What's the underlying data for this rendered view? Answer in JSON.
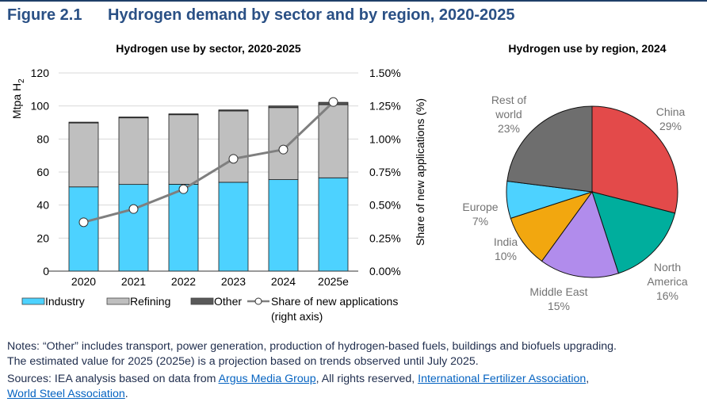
{
  "figure": {
    "number": "Figure 2.1",
    "title": "Hydrogen demand by sector and by region, 2020-2025"
  },
  "chart_data": [
    {
      "type": "bar",
      "stacked": true,
      "title": "Hydrogen use by sector, 2020-2025",
      "ylabel": "Mtpa H",
      "ylabel_sub": "2",
      "y2label": "Share of new applications (%)",
      "ylim": [
        0,
        120
      ],
      "yticks": [
        "0",
        "20",
        "40",
        "60",
        "80",
        "100",
        "120"
      ],
      "y2lim": [
        0,
        1.5
      ],
      "y2ticks": [
        "0.00%",
        "0.25%",
        "0.50%",
        "0.75%",
        "1.00%",
        "1.25%",
        "1.50%"
      ],
      "grid": true,
      "categories": [
        "2020",
        "2021",
        "2022",
        "2023",
        "2024",
        "2025e"
      ],
      "series": [
        {
          "name": "Industry",
          "color": "#4dd2ff",
          "values": [
            51,
            52.5,
            52.6,
            53.8,
            55.4,
            56.5
          ]
        },
        {
          "name": "Refining",
          "color": "#bfbfbf",
          "values": [
            38.7,
            40.3,
            42.1,
            43.2,
            43.6,
            44.3
          ]
        },
        {
          "name": "Other",
          "color": "#595959",
          "values": [
            0.5,
            0.5,
            0.5,
            0.6,
            1.0,
            1.4
          ]
        }
      ],
      "line_series": {
        "name": "Share of new applications",
        "name2": "(right axis)",
        "axis": "right",
        "color": "#7f7f7f",
        "values": [
          0.37,
          0.47,
          0.62,
          0.85,
          0.92,
          1.28
        ]
      },
      "legend": "bottom"
    },
    {
      "type": "pie",
      "title": "Hydrogen use by region, 2024",
      "slices": [
        {
          "label": "China",
          "value": 29,
          "pct": "29%",
          "color": "#e34a4a"
        },
        {
          "label": "North America",
          "value": 16,
          "pct": "16%",
          "color": "#00ae9d"
        },
        {
          "label": "Middle East",
          "value": 15,
          "pct": "15%",
          "color": "#b18cec"
        },
        {
          "label": "India",
          "value": 10,
          "pct": "10%",
          "color": "#f2a70f"
        },
        {
          "label": "Europe",
          "value": 7,
          "pct": "7%",
          "color": "#4dd2ff"
        },
        {
          "label": "Rest of world",
          "value": 23,
          "pct": "23%",
          "color": "#6e6e6e"
        }
      ]
    }
  ],
  "notes": {
    "line1": "Notes: “Other” includes transport, power generation, production of hydrogen-based fuels, buildings and biofuels upgrading.",
    "line2": "The estimated value for 2025 (2025e) is a projection based on trends observed until July 2025.",
    "sources_prefix": "Sources: IEA analysis based on data from ",
    "link1": "Argus Media Group",
    "mid": ", All rights reserved, ",
    "link2": "International Fertilizer Association",
    "comma": ",",
    "link3": "World Steel Association",
    "end": "."
  }
}
